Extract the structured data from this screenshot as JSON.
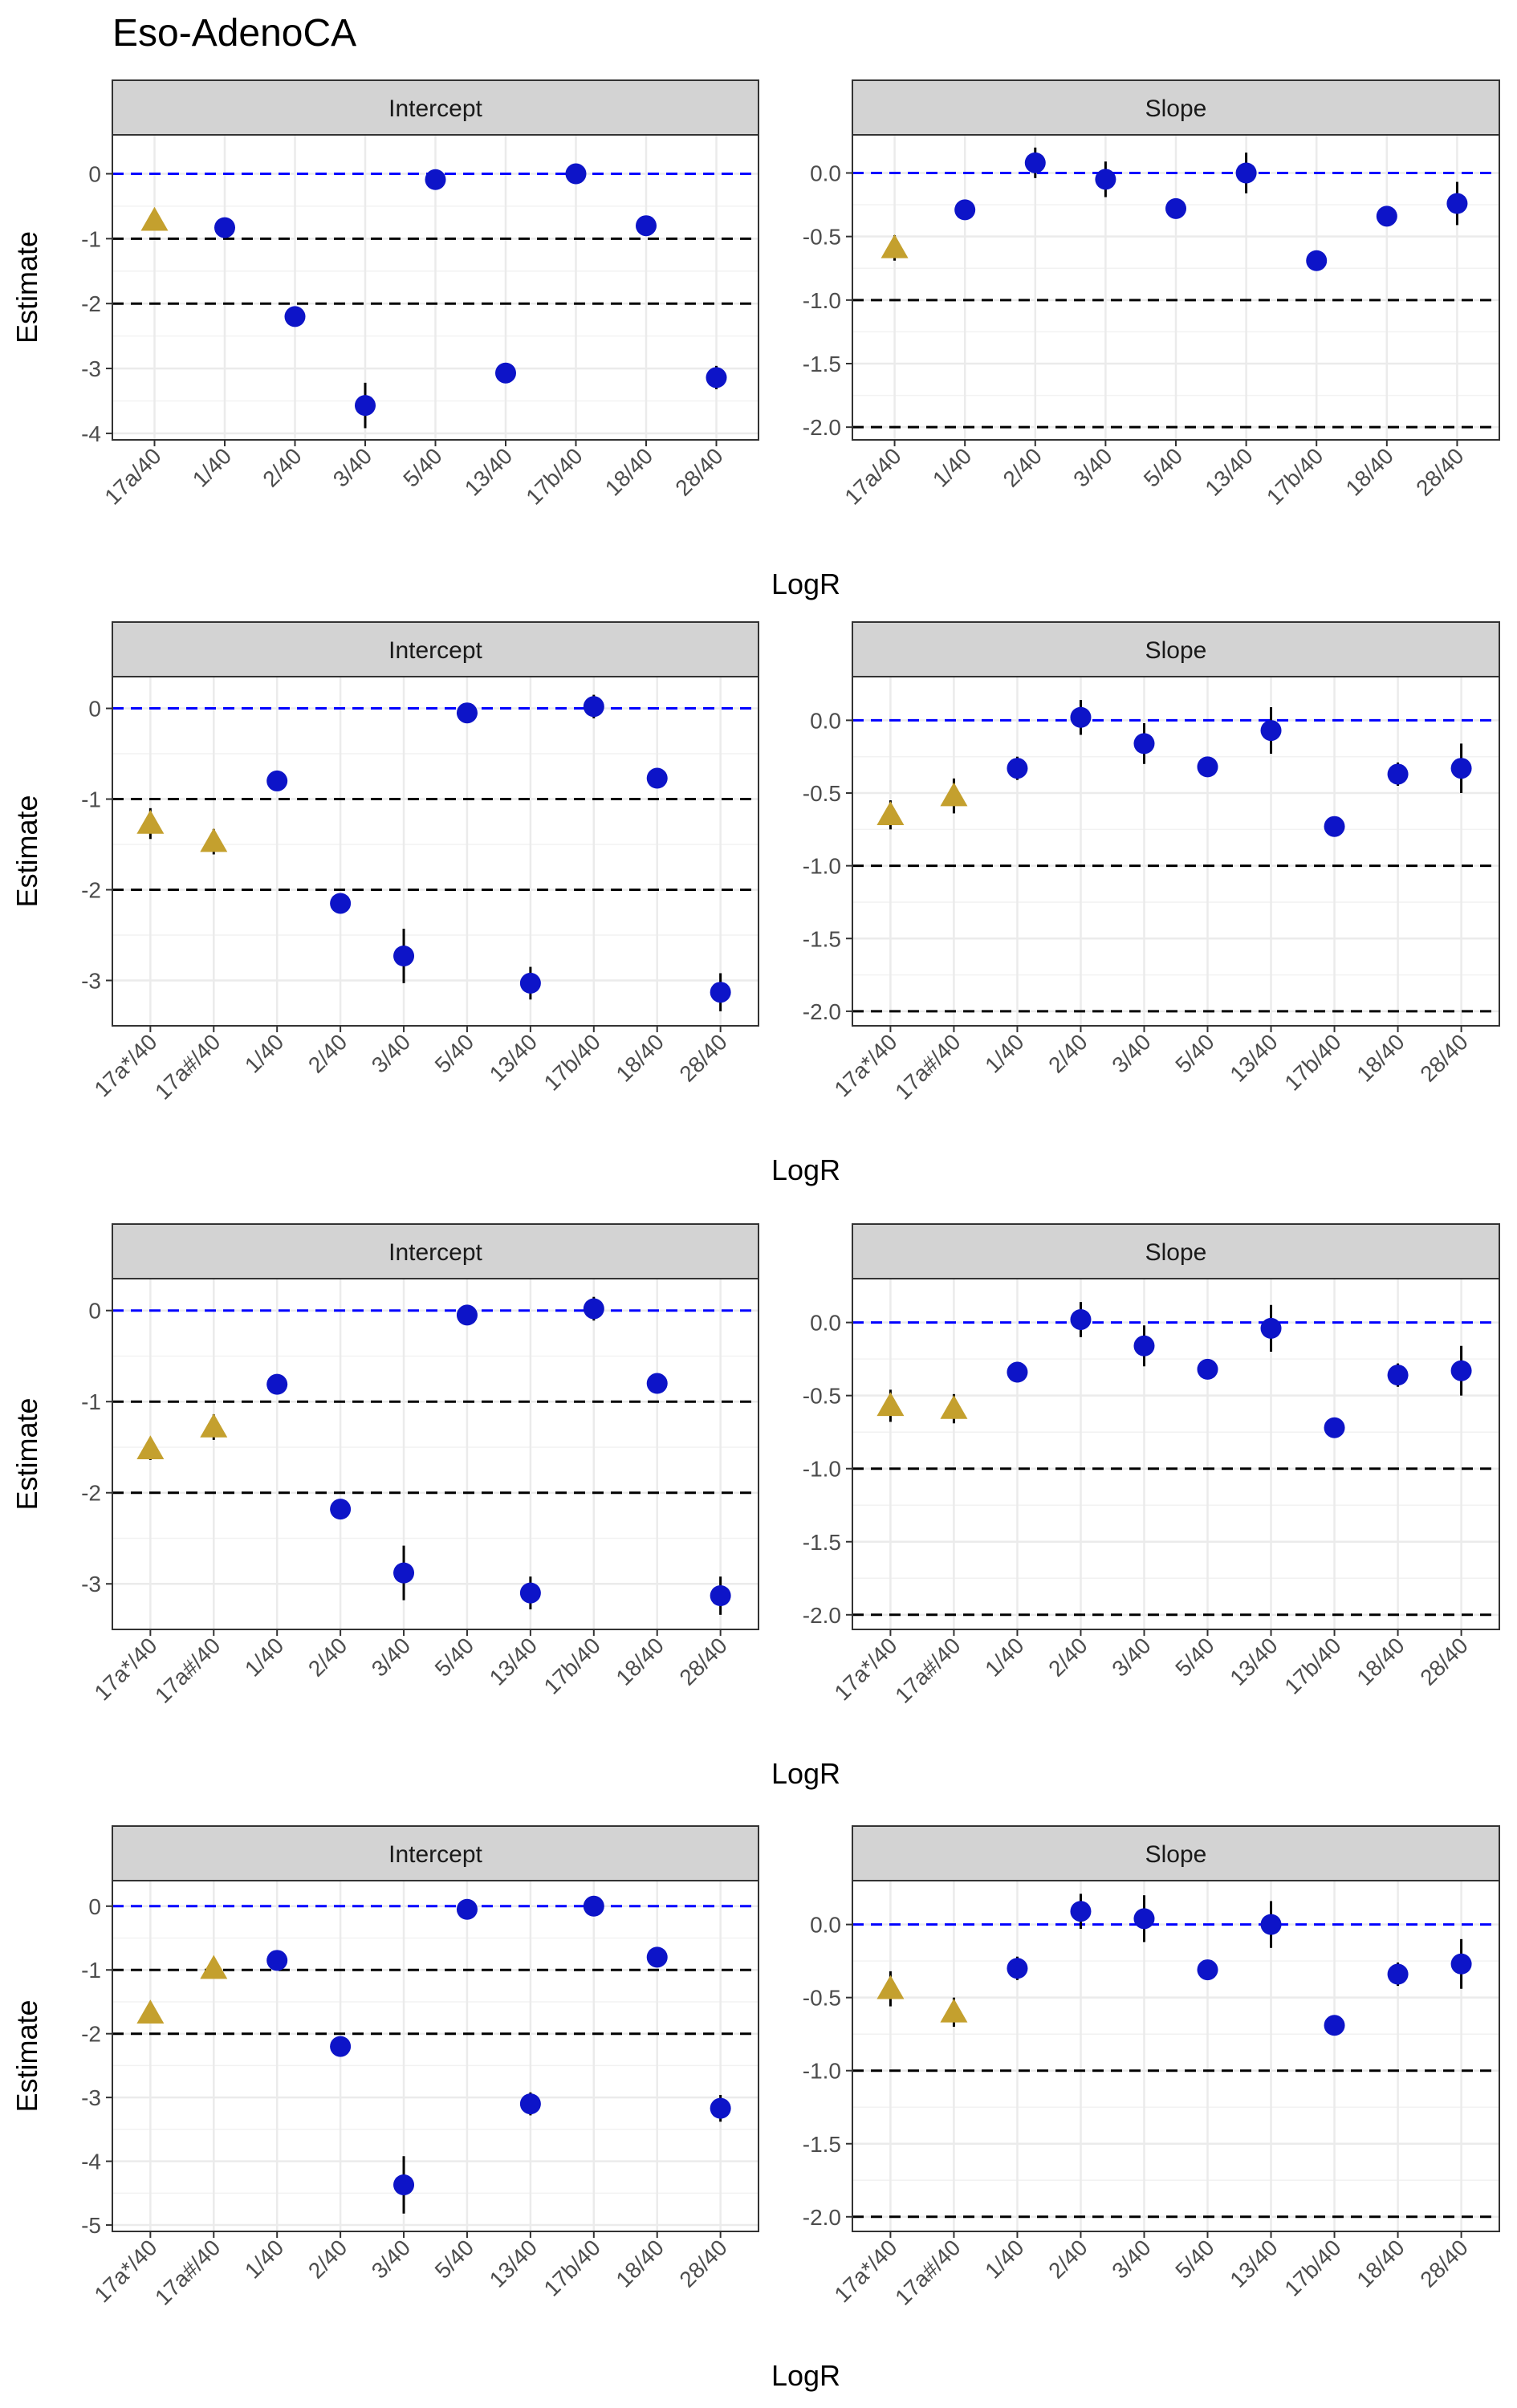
{
  "title": "Eso-AdenoCA",
  "colors": {
    "point": "#0d14c8",
    "triangle": "#c4a02e",
    "zero_line": "#0000ff",
    "ref_line": "#000000",
    "strip_fill": "#d3d3d3",
    "grid": "#ebebeb"
  },
  "chart_data": [
    {
      "row": 1,
      "panel": "Intercept",
      "type": "scatter",
      "xlabel": "LogR",
      "ylabel": "Estimate",
      "ylim": [
        -4.1,
        0.6
      ],
      "yticks": [
        0,
        -1,
        -2,
        -3,
        -4
      ],
      "ytick_labels": [
        "0",
        "-1",
        "-2",
        "-3",
        "-4"
      ],
      "reference_lines": [
        {
          "y": 0,
          "color": "blue"
        },
        {
          "y": -1,
          "color": "black"
        },
        {
          "y": -2,
          "color": "black"
        }
      ],
      "categories": [
        "17a/40",
        "1/40",
        "2/40",
        "3/40",
        "5/40",
        "13/40",
        "17b/40",
        "18/40",
        "28/40"
      ],
      "values": [
        -0.72,
        -0.83,
        -2.2,
        -3.57,
        -0.09,
        -3.07,
        0.0,
        -0.8,
        -3.14
      ],
      "errors": [
        0.04,
        0.04,
        0.05,
        0.35,
        0.04,
        0.15,
        0.04,
        0.04,
        0.18
      ],
      "shapes": [
        "triangle",
        "circle",
        "circle",
        "circle",
        "circle",
        "circle",
        "circle",
        "circle",
        "circle"
      ]
    },
    {
      "row": 1,
      "panel": "Slope",
      "type": "scatter",
      "xlabel": "LogR",
      "ylabel": "",
      "ylim": [
        -2.1,
        0.3
      ],
      "yticks": [
        0,
        -0.5,
        -1,
        -1.5,
        -2
      ],
      "ytick_labels": [
        "0.0",
        "-0.5",
        "-1.0",
        "-1.5",
        "-2.0"
      ],
      "reference_lines": [
        {
          "y": 0,
          "color": "blue"
        },
        {
          "y": -1,
          "color": "black"
        },
        {
          "y": -2,
          "color": "black"
        }
      ],
      "categories": [
        "17a/40",
        "1/40",
        "2/40",
        "3/40",
        "5/40",
        "13/40",
        "17b/40",
        "18/40",
        "28/40"
      ],
      "values": [
        -0.59,
        -0.29,
        0.08,
        -0.05,
        -0.28,
        0.0,
        -0.69,
        -0.34,
        -0.24
      ],
      "errors": [
        0.1,
        0.06,
        0.12,
        0.14,
        0.04,
        0.16,
        0.04,
        0.05,
        0.17
      ],
      "shapes": [
        "triangle",
        "circle",
        "circle",
        "circle",
        "circle",
        "circle",
        "circle",
        "circle",
        "circle"
      ]
    },
    {
      "row": 2,
      "panel": "Intercept",
      "type": "scatter",
      "xlabel": "LogR",
      "ylabel": "Estimate",
      "ylim": [
        -3.5,
        0.35
      ],
      "yticks": [
        0,
        -1,
        -2,
        -3
      ],
      "ytick_labels": [
        "0",
        "-1",
        "-2",
        "-3"
      ],
      "reference_lines": [
        {
          "y": 0,
          "color": "blue"
        },
        {
          "y": -1,
          "color": "black"
        },
        {
          "y": -2,
          "color": "black"
        }
      ],
      "categories": [
        "17a*/40",
        "17a#/40",
        "1/40",
        "2/40",
        "3/40",
        "5/40",
        "13/40",
        "17b/40",
        "18/40",
        "28/40"
      ],
      "values": [
        -1.27,
        -1.47,
        -0.8,
        -2.15,
        -2.73,
        -0.05,
        -3.03,
        0.02,
        -0.77,
        -3.13
      ],
      "errors": [
        0.17,
        0.14,
        0.04,
        0.06,
        0.3,
        0.04,
        0.18,
        0.13,
        0.04,
        0.21
      ],
      "shapes": [
        "triangle",
        "triangle",
        "circle",
        "circle",
        "circle",
        "circle",
        "circle",
        "circle",
        "circle",
        "circle"
      ]
    },
    {
      "row": 2,
      "panel": "Slope",
      "type": "scatter",
      "xlabel": "LogR",
      "ylabel": "",
      "ylim": [
        -2.1,
        0.3
      ],
      "yticks": [
        0,
        -0.5,
        -1,
        -1.5,
        -2
      ],
      "ytick_labels": [
        "0.0",
        "-0.5",
        "-1.0",
        "-1.5",
        "-2.0"
      ],
      "reference_lines": [
        {
          "y": 0,
          "color": "blue"
        },
        {
          "y": -1,
          "color": "black"
        },
        {
          "y": -2,
          "color": "black"
        }
      ],
      "categories": [
        "17a*/40",
        "17a#/40",
        "1/40",
        "2/40",
        "3/40",
        "5/40",
        "13/40",
        "17b/40",
        "18/40",
        "28/40"
      ],
      "values": [
        -0.65,
        -0.52,
        -0.33,
        0.02,
        -0.16,
        -0.32,
        -0.07,
        -0.73,
        -0.37,
        -0.33
      ],
      "errors": [
        0.1,
        0.12,
        0.08,
        0.12,
        0.14,
        0.04,
        0.16,
        0.04,
        0.08,
        0.17
      ],
      "shapes": [
        "triangle",
        "triangle",
        "circle",
        "circle",
        "circle",
        "circle",
        "circle",
        "circle",
        "circle",
        "circle"
      ]
    },
    {
      "row": 3,
      "panel": "Intercept",
      "type": "scatter",
      "xlabel": "LogR",
      "ylabel": "Estimate",
      "ylim": [
        -3.5,
        0.35
      ],
      "yticks": [
        0,
        -1,
        -2,
        -3
      ],
      "ytick_labels": [
        "0",
        "-1",
        "-2",
        "-3"
      ],
      "reference_lines": [
        {
          "y": 0,
          "color": "blue"
        },
        {
          "y": -1,
          "color": "black"
        },
        {
          "y": -2,
          "color": "black"
        }
      ],
      "categories": [
        "17a*/40",
        "17a#/40",
        "1/40",
        "2/40",
        "3/40",
        "5/40",
        "13/40",
        "17b/40",
        "18/40",
        "28/40"
      ],
      "values": [
        -1.52,
        -1.28,
        -0.81,
        -2.18,
        -2.88,
        -0.05,
        -3.1,
        0.02,
        -0.8,
        -3.13
      ],
      "errors": [
        0.12,
        0.14,
        0.04,
        0.06,
        0.3,
        0.04,
        0.18,
        0.13,
        0.04,
        0.21
      ],
      "shapes": [
        "triangle",
        "triangle",
        "circle",
        "circle",
        "circle",
        "circle",
        "circle",
        "circle",
        "circle",
        "circle"
      ]
    },
    {
      "row": 3,
      "panel": "Slope",
      "type": "scatter",
      "xlabel": "LogR",
      "ylabel": "",
      "ylim": [
        -2.1,
        0.3
      ],
      "yticks": [
        0,
        -0.5,
        -1,
        -1.5,
        -2
      ],
      "ytick_labels": [
        "0.0",
        "-0.5",
        "-1.0",
        "-1.5",
        "-2.0"
      ],
      "reference_lines": [
        {
          "y": 0,
          "color": "blue"
        },
        {
          "y": -1,
          "color": "black"
        },
        {
          "y": -2,
          "color": "black"
        }
      ],
      "categories": [
        "17a*/40",
        "17a#/40",
        "1/40",
        "2/40",
        "3/40",
        "5/40",
        "13/40",
        "17b/40",
        "18/40",
        "28/40"
      ],
      "values": [
        -0.57,
        -0.59,
        -0.34,
        0.02,
        -0.16,
        -0.32,
        -0.04,
        -0.72,
        -0.36,
        -0.33
      ],
      "errors": [
        0.11,
        0.1,
        0.07,
        0.12,
        0.14,
        0.04,
        0.16,
        0.04,
        0.08,
        0.17
      ],
      "shapes": [
        "triangle",
        "triangle",
        "circle",
        "circle",
        "circle",
        "circle",
        "circle",
        "circle",
        "circle",
        "circle"
      ]
    },
    {
      "row": 4,
      "panel": "Intercept",
      "type": "scatter",
      "xlabel": "LogR",
      "ylabel": "Estimate",
      "ylim": [
        -5.1,
        0.4
      ],
      "yticks": [
        0,
        -1,
        -2,
        -3,
        -4,
        -5
      ],
      "ytick_labels": [
        "0",
        "-1",
        "-2",
        "-3",
        "-4",
        "-5"
      ],
      "reference_lines": [
        {
          "y": 0,
          "color": "blue"
        },
        {
          "y": -1,
          "color": "black"
        },
        {
          "y": -2,
          "color": "black"
        }
      ],
      "categories": [
        "17a*/40",
        "17a#/40",
        "1/40",
        "2/40",
        "3/40",
        "5/40",
        "13/40",
        "17b/40",
        "18/40",
        "28/40"
      ],
      "values": [
        -1.68,
        -0.98,
        -0.85,
        -2.2,
        -4.37,
        -0.05,
        -3.1,
        0.0,
        -0.8,
        -3.17
      ],
      "errors": [
        0.1,
        0.1,
        0.04,
        0.06,
        0.45,
        0.04,
        0.18,
        0.04,
        0.04,
        0.21
      ],
      "shapes": [
        "triangle",
        "triangle",
        "circle",
        "circle",
        "circle",
        "circle",
        "circle",
        "circle",
        "circle",
        "circle"
      ]
    },
    {
      "row": 4,
      "panel": "Slope",
      "type": "scatter",
      "xlabel": "LogR",
      "ylabel": "",
      "ylim": [
        -2.1,
        0.3
      ],
      "yticks": [
        0,
        -0.5,
        -1,
        -1.5,
        -2
      ],
      "ytick_labels": [
        "0.0",
        "-0.5",
        "-1.0",
        "-1.5",
        "-2.0"
      ],
      "reference_lines": [
        {
          "y": 0,
          "color": "blue"
        },
        {
          "y": -1,
          "color": "black"
        },
        {
          "y": -2,
          "color": "black"
        }
      ],
      "categories": [
        "17a*/40",
        "17a#/40",
        "1/40",
        "2/40",
        "3/40",
        "5/40",
        "13/40",
        "17b/40",
        "18/40",
        "28/40"
      ],
      "values": [
        -0.44,
        -0.6,
        -0.3,
        0.09,
        0.04,
        -0.31,
        0.0,
        -0.69,
        -0.34,
        -0.27
      ],
      "errors": [
        0.12,
        0.1,
        0.08,
        0.12,
        0.16,
        0.04,
        0.16,
        0.04,
        0.08,
        0.17
      ],
      "shapes": [
        "triangle",
        "triangle",
        "circle",
        "circle",
        "circle",
        "circle",
        "circle",
        "circle",
        "circle",
        "circle"
      ]
    }
  ]
}
